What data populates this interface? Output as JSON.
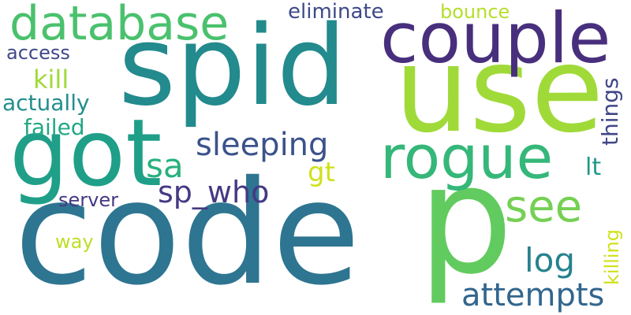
{
  "words": [
    {
      "text": "code",
      "color": "#2e7591"
    },
    {
      "text": "spid",
      "color": "#238a8d"
    },
    {
      "text": "use",
      "color": "#a0da39"
    },
    {
      "text": "got",
      "color": "#1f9f88"
    },
    {
      "text": "p",
      "color": "#62cb5f"
    },
    {
      "text": "couple",
      "color": "#482f7d"
    },
    {
      "text": "rogue",
      "color": "#35b779"
    },
    {
      "text": "database",
      "color": "#4ac16d"
    },
    {
      "text": "see",
      "color": "#75d054"
    },
    {
      "text": "sleeping",
      "color": "#3b528b"
    },
    {
      "text": "sp_who",
      "color": "#443a83"
    },
    {
      "text": "attempts",
      "color": "#31668e"
    },
    {
      "text": "sa",
      "color": "#2ab07f"
    },
    {
      "text": "log",
      "color": "#26828e"
    },
    {
      "text": "gt",
      "color": "#d0e11c"
    },
    {
      "text": "lt",
      "color": "#1f988b"
    },
    {
      "text": "kill",
      "color": "#a0da39"
    },
    {
      "text": "failed",
      "color": "#22a884"
    },
    {
      "text": "actually",
      "color": "#218f8d"
    },
    {
      "text": "eliminate",
      "color": "#3e4989"
    },
    {
      "text": "bounce",
      "color": "#b5de2b"
    },
    {
      "text": "access",
      "color": "#3f4889"
    },
    {
      "text": "server",
      "color": "#443983"
    },
    {
      "text": "way",
      "color": "#bddf26"
    },
    {
      "text": "things",
      "color": "#404688"
    },
    {
      "text": "killing",
      "color": "#d0e11c"
    }
  ]
}
